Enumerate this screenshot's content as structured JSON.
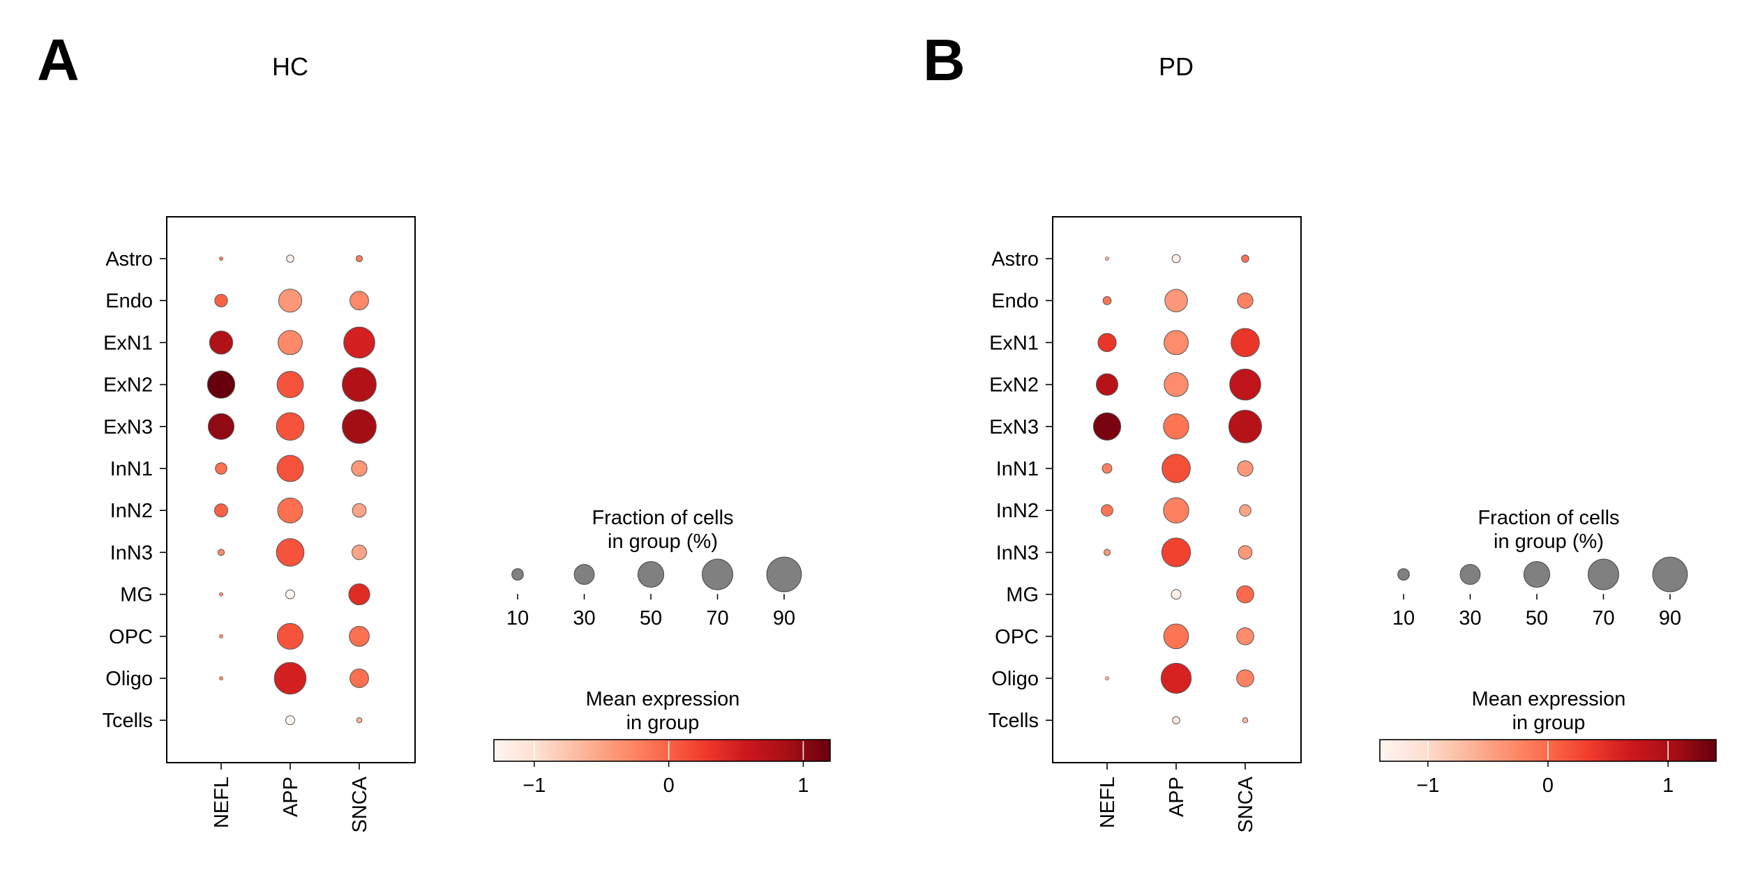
{
  "chart_data": [
    {
      "type": "dotplot",
      "panel_label": "A",
      "title": "HC",
      "genes": [
        "NEFL",
        "APP",
        "SNCA"
      ],
      "cell_types": [
        "Astro",
        "Endo",
        "ExN1",
        "ExN2",
        "ExN3",
        "InN1",
        "InN2",
        "InN3",
        "MG",
        "OPC",
        "Oligo",
        "Tcells"
      ],
      "fraction_pct": [
        [
          1,
          4,
          3
        ],
        [
          12,
          40,
          26
        ],
        [
          40,
          44,
          72
        ],
        [
          56,
          52,
          86
        ],
        [
          50,
          57,
          86
        ],
        [
          10,
          52,
          18
        ],
        [
          13,
          47,
          14
        ],
        [
          3,
          57,
          16
        ],
        [
          1,
          6,
          33
        ],
        [
          1,
          50,
          30
        ],
        [
          1,
          75,
          26
        ],
        [
          0,
          6,
          2
        ]
      ],
      "mean_expression": [
        [
          -0.2,
          -1.2,
          -0.2
        ],
        [
          0.0,
          -0.4,
          -0.3
        ],
        [
          0.8,
          -0.3,
          0.5
        ],
        [
          1.4,
          0.1,
          0.8
        ],
        [
          1.0,
          0.1,
          0.9
        ],
        [
          -0.1,
          0.1,
          -0.4
        ],
        [
          0.0,
          -0.1,
          -0.5
        ],
        [
          -0.3,
          0.1,
          -0.5
        ],
        [
          -0.3,
          -1.3,
          0.4
        ],
        [
          -0.3,
          0.1,
          -0.1
        ],
        [
          -0.3,
          0.5,
          -0.1
        ],
        [
          null,
          -1.3,
          -0.6
        ]
      ],
      "size_legend": {
        "title_line1": "Fraction of cells",
        "title_line2": "in group (%)",
        "values": [
          10,
          30,
          50,
          70,
          90
        ]
      },
      "color_legend": {
        "title_line1": "Mean expression",
        "title_line2": "in group",
        "range": [
          -1.3,
          1.2
        ],
        "ticks": [
          -1,
          0,
          1
        ],
        "tick_labels": [
          "−1",
          "0",
          "1"
        ]
      }
    },
    {
      "type": "dotplot",
      "panel_label": "B",
      "title": "PD",
      "genes": [
        "NEFL",
        "APP",
        "SNCA"
      ],
      "cell_types": [
        "Astro",
        "Endo",
        "ExN1",
        "ExN2",
        "ExN3",
        "InN1",
        "InN2",
        "InN3",
        "MG",
        "OPC",
        "Oligo",
        "Tcells"
      ],
      "fraction_pct": [
        [
          1,
          5,
          4
        ],
        [
          5,
          38,
          18
        ],
        [
          25,
          44,
          60
        ],
        [
          35,
          43,
          72
        ],
        [
          56,
          48,
          80
        ],
        [
          7,
          60,
          18
        ],
        [
          10,
          48,
          10
        ],
        [
          3,
          62,
          14
        ],
        [
          0,
          7,
          22
        ],
        [
          0,
          46,
          22
        ],
        [
          1,
          68,
          22
        ],
        [
          0,
          4,
          2
        ]
      ],
      "mean_expression": [
        [
          -0.6,
          -1.3,
          -0.1
        ],
        [
          -0.1,
          -0.4,
          -0.2
        ],
        [
          0.4,
          -0.3,
          0.4
        ],
        [
          0.9,
          -0.3,
          0.8
        ],
        [
          1.3,
          -0.1,
          0.9
        ],
        [
          -0.2,
          0.2,
          -0.4
        ],
        [
          -0.1,
          -0.2,
          -0.5
        ],
        [
          -0.4,
          0.3,
          -0.4
        ],
        [
          -0.4,
          -1.3,
          0.0
        ],
        [
          -0.4,
          -0.1,
          -0.3
        ],
        [
          -0.6,
          0.6,
          -0.2
        ],
        [
          -0.6,
          -1.3,
          -0.7
        ]
      ],
      "size_legend": {
        "title_line1": "Fraction of cells",
        "title_line2": "in group (%)",
        "values": [
          10,
          30,
          50,
          70,
          90
        ]
      },
      "color_legend": {
        "title_line1": "Mean expression",
        "title_line2": "in group",
        "range": [
          -1.4,
          1.4
        ],
        "ticks": [
          -1,
          0,
          1
        ],
        "tick_labels": [
          "−1",
          "0",
          "1"
        ]
      }
    }
  ],
  "colors": {
    "reds_scale": [
      "#fff5f0",
      "#fee0d2",
      "#fcbba1",
      "#fc9272",
      "#fb6a4a",
      "#ef3b2c",
      "#cb181d",
      "#a50f15",
      "#67000d"
    ],
    "legend_dot": "#808080",
    "edge": "#555555"
  }
}
